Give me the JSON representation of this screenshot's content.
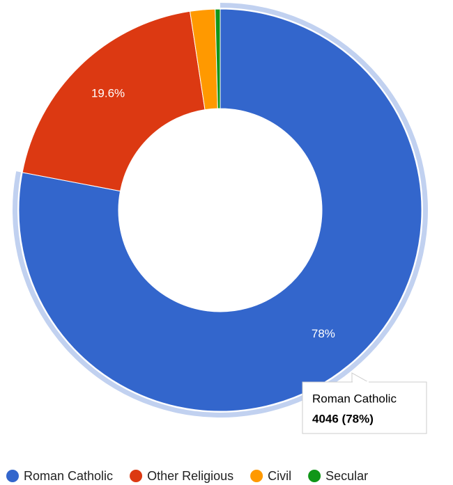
{
  "chart_data": {
    "type": "donut",
    "categories": [
      "Roman Catholic",
      "Other Religious",
      "Civil",
      "Secular"
    ],
    "values": [
      78,
      19.6,
      2.0,
      0.4
    ],
    "value_labels": [
      "78%",
      "19.6%",
      null,
      null
    ],
    "colors": [
      "#3366cc",
      "#dc3912",
      "#ff9900",
      "#109618"
    ],
    "legend": "bottom",
    "tooltip": {
      "text": "4046 (78%)"
    }
  }
}
